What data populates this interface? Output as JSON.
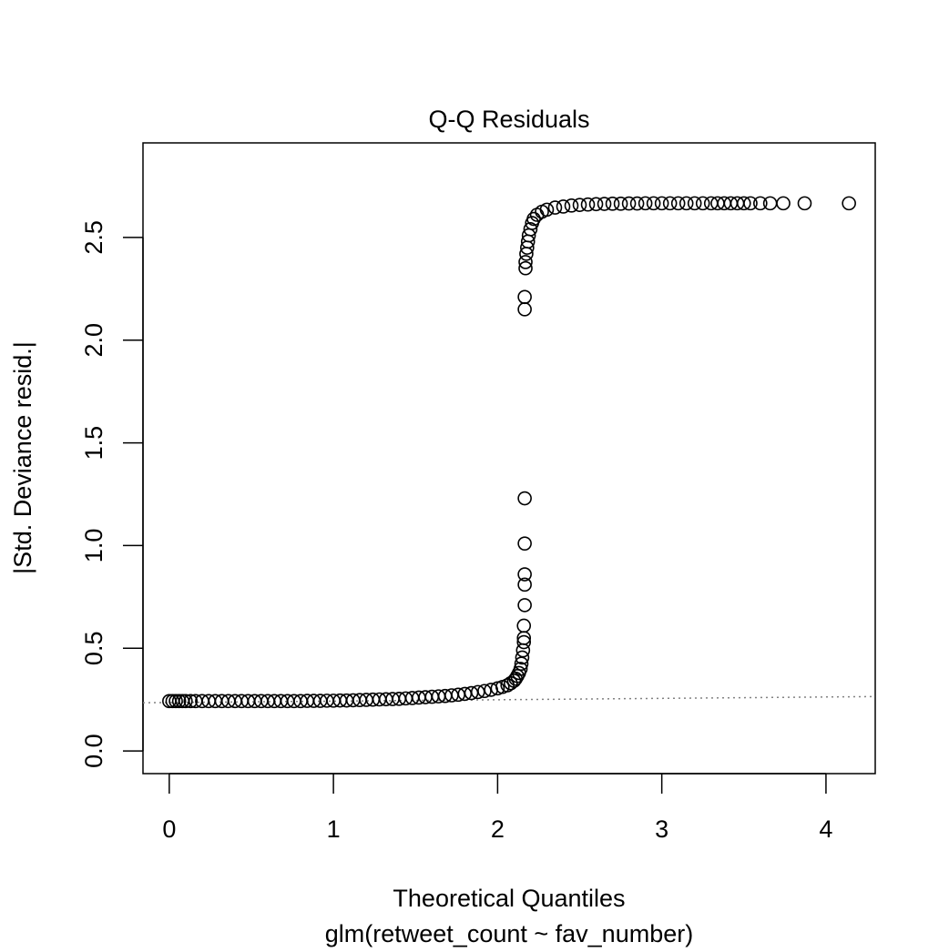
{
  "chart_data": {
    "type": "scatter",
    "title": "Q-Q Residuals",
    "xlabel": "Theoretical Quantiles",
    "subtitle": "glm(retweet_count ~ fav_number)",
    "ylabel": "|Std. Deviance resid.|",
    "xlim": [
      -0.16,
      4.3
    ],
    "ylim": [
      -0.11,
      2.96
    ],
    "x_ticks": [
      0,
      1,
      2,
      3,
      4
    ],
    "x_tick_labels": [
      "0",
      "1",
      "2",
      "3",
      "4"
    ],
    "y_ticks": [
      0.0,
      0.5,
      1.0,
      1.5,
      2.0,
      2.5
    ],
    "y_tick_labels": [
      "0.0",
      "0.5",
      "1.0",
      "1.5",
      "2.0",
      "2.5"
    ],
    "reference_line": {
      "x": [
        -0.16,
        4.3
      ],
      "y": [
        0.235,
        0.265
      ],
      "style": "dotted",
      "color": "#808080"
    },
    "series": [
      {
        "marker": "open-circle",
        "color": "#000000",
        "points": [
          [
            0.0,
            0.243
          ],
          [
            0.02,
            0.243
          ],
          [
            0.04,
            0.243
          ],
          [
            0.06,
            0.243
          ],
          [
            0.08,
            0.243
          ],
          [
            0.1,
            0.243
          ],
          [
            0.13,
            0.243
          ],
          [
            0.16,
            0.243
          ],
          [
            0.2,
            0.243
          ],
          [
            0.24,
            0.243
          ],
          [
            0.28,
            0.243
          ],
          [
            0.32,
            0.243
          ],
          [
            0.36,
            0.243
          ],
          [
            0.4,
            0.243
          ],
          [
            0.44,
            0.243
          ],
          [
            0.48,
            0.243
          ],
          [
            0.52,
            0.243
          ],
          [
            0.56,
            0.243
          ],
          [
            0.6,
            0.243
          ],
          [
            0.64,
            0.243
          ],
          [
            0.68,
            0.243
          ],
          [
            0.72,
            0.243
          ],
          [
            0.76,
            0.243
          ],
          [
            0.8,
            0.243
          ],
          [
            0.84,
            0.244
          ],
          [
            0.88,
            0.244
          ],
          [
            0.92,
            0.244
          ],
          [
            0.96,
            0.245
          ],
          [
            1.0,
            0.245
          ],
          [
            1.04,
            0.246
          ],
          [
            1.08,
            0.246
          ],
          [
            1.12,
            0.247
          ],
          [
            1.16,
            0.248
          ],
          [
            1.2,
            0.249
          ],
          [
            1.24,
            0.25
          ],
          [
            1.28,
            0.251
          ],
          [
            1.32,
            0.252
          ],
          [
            1.36,
            0.253
          ],
          [
            1.4,
            0.254
          ],
          [
            1.44,
            0.256
          ],
          [
            1.48,
            0.258
          ],
          [
            1.52,
            0.26
          ],
          [
            1.56,
            0.262
          ],
          [
            1.6,
            0.264
          ],
          [
            1.64,
            0.266
          ],
          [
            1.68,
            0.268
          ],
          [
            1.72,
            0.271
          ],
          [
            1.76,
            0.274
          ],
          [
            1.8,
            0.278
          ],
          [
            1.84,
            0.282
          ],
          [
            1.88,
            0.287
          ],
          [
            1.92,
            0.292
          ],
          [
            1.96,
            0.298
          ],
          [
            2.0,
            0.305
          ],
          [
            2.03,
            0.312
          ],
          [
            2.06,
            0.32
          ],
          [
            2.08,
            0.33
          ],
          [
            2.1,
            0.342
          ],
          [
            2.11,
            0.352
          ],
          [
            2.12,
            0.365
          ],
          [
            2.13,
            0.38
          ],
          [
            2.14,
            0.4
          ],
          [
            2.145,
            0.425
          ],
          [
            2.15,
            0.455
          ],
          [
            2.155,
            0.49
          ],
          [
            2.16,
            0.53
          ],
          [
            2.16,
            0.55
          ],
          [
            2.16,
            0.61
          ],
          [
            2.165,
            0.71
          ],
          [
            2.165,
            0.81
          ],
          [
            2.165,
            0.86
          ],
          [
            2.165,
            1.01
          ],
          [
            2.165,
            1.23
          ],
          [
            2.165,
            2.15
          ],
          [
            2.165,
            2.21
          ],
          [
            2.17,
            2.35
          ],
          [
            2.17,
            2.38
          ],
          [
            2.175,
            2.42
          ],
          [
            2.18,
            2.45
          ],
          [
            2.185,
            2.48
          ],
          [
            2.19,
            2.51
          ],
          [
            2.2,
            2.54
          ],
          [
            2.21,
            2.57
          ],
          [
            2.22,
            2.59
          ],
          [
            2.24,
            2.61
          ],
          [
            2.27,
            2.625
          ],
          [
            2.3,
            2.635
          ],
          [
            2.35,
            2.645
          ],
          [
            2.4,
            2.65
          ],
          [
            2.45,
            2.655
          ],
          [
            2.5,
            2.658
          ],
          [
            2.55,
            2.66
          ],
          [
            2.6,
            2.662
          ],
          [
            2.65,
            2.663
          ],
          [
            2.7,
            2.664
          ],
          [
            2.75,
            2.664
          ],
          [
            2.8,
            2.665
          ],
          [
            2.85,
            2.665
          ],
          [
            2.9,
            2.666
          ],
          [
            2.95,
            2.666
          ],
          [
            3.0,
            2.666
          ],
          [
            3.05,
            2.666
          ],
          [
            3.1,
            2.666
          ],
          [
            3.15,
            2.666
          ],
          [
            3.2,
            2.666
          ],
          [
            3.25,
            2.666
          ],
          [
            3.3,
            2.666
          ],
          [
            3.34,
            2.666
          ],
          [
            3.38,
            2.666
          ],
          [
            3.42,
            2.666
          ],
          [
            3.46,
            2.666
          ],
          [
            3.5,
            2.666
          ],
          [
            3.54,
            2.666
          ],
          [
            3.6,
            2.666
          ],
          [
            3.66,
            2.666
          ],
          [
            3.74,
            2.666
          ],
          [
            3.87,
            2.666
          ],
          [
            4.14,
            2.666
          ]
        ]
      }
    ]
  }
}
